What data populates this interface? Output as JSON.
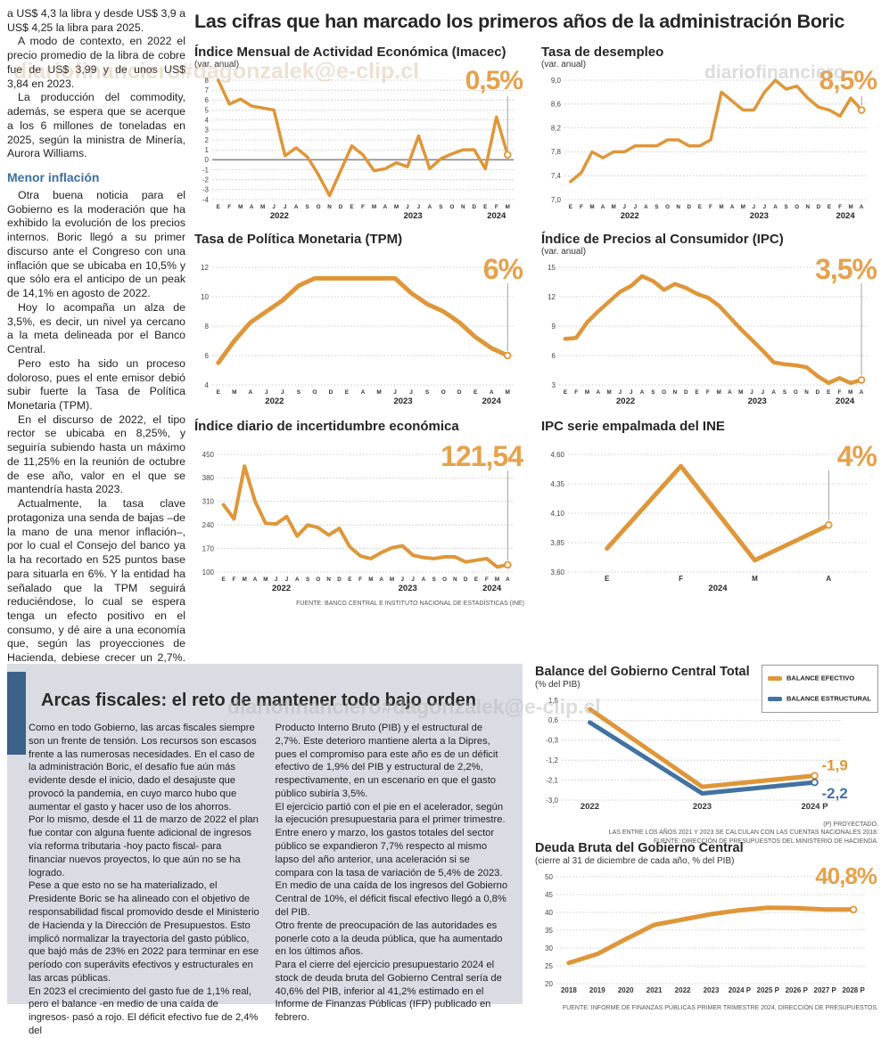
{
  "page_title": "Las cifras que han marcado los primeros años de la administración Boric",
  "colors": {
    "accent_orange": "#DF9639",
    "accent_blue": "#4272A2",
    "big_number": "#E6A14B"
  },
  "watermarks": [
    {
      "text": "diariofinanciero#dagonzalek@e-clip.cl"
    },
    {
      "text": "diariofinanciero"
    },
    {
      "text": "diariofinanciero#dagonzalek@e-clip.cl"
    }
  ],
  "article": {
    "paragraphs": [
      "a US$ 4,3 la libra y desde US$ 3,9 a US$ 4,25 la libra para 2025.",
      "A modo de contexto, en 2022 el precio promedio de la libra de cobre fue de US$ 3,99 y de unos US$ 3,84 en 2023.",
      "La producción del commodity, además, se espera que se acerque a los 6 millones de toneladas en 2025, según la ministra de Minería, Aurora Williams."
    ],
    "subhead": "Menor inflación",
    "paragraphs2": [
      "Otra buena noticia para el Gobierno es la moderación que ha exhibido la evolución de los precios internos. Boric llegó a su primer discurso ante el Congreso con una inflación que se ubicaba en 10,5% y que sólo era el anticipo de un peak de 14,1% en agosto de 2022.",
      "Hoy lo acompaña un alza de 3,5%, es decir, un nivel ya cercano a la meta delineada por el Banco Central.",
      "Pero esto ha sido un proceso doloroso, pues el ente emisor debió subir fuerte la Tasa de Política Monetaria (TPM).",
      "En el discurso de 2022, el tipo rector se ubicaba en 8,25%, y seguiría subiendo hasta un máximo de 11,25% en la reunión de octubre de ese año, valor en el que se mantendría hasta 2023.",
      "Actualmente, la tasa clave protagoniza una senda de bajas –de la mano de una menor inflación–, por lo cual el Consejo del banco ya la ha recortado en 525 puntos base para situarla en 6%. Y la entidad ha señalado que la TPM seguirá reduciéndose, lo cual se espera tenga un efecto positivo en el consumo, y dé aire a una economía que, según las proyecciones de Hacienda, debiese crecer un 2,7%."
    ]
  },
  "arcas": {
    "heading": "Arcas fiscales: el reto de mantener todo bajo orden",
    "col1": [
      "Como en todo Gobierno, las arcas fiscales siempre son un frente de tensión. Los recursos son escasos frente a las numerosas necesidades. En el caso de la administración Boric, el desafío fue aún más evidente desde el inicio, dado el desajuste que provocó la pandemia, en cuyo marco hubo que aumentar el gasto y hacer uso de los ahorros.",
      "Por lo mismo, desde el 11 de marzo de 2022 el plan fue contar con alguna fuente adicional de ingresos vía reforma tributaria -hoy pacto fiscal- para financiar nuevos proyectos, lo que aún no se ha logrado.",
      "Pese a que esto no se ha materializado, el Presidente Boric se ha alineado con el objetivo de responsabilidad fiscal promovido desde el Ministerio de Hacienda y la Dirección de Presupuestos. Esto implicó normalizar la trayectoria del gasto público, que bajó más de 23% en 2022 para terminar en ese período con superávits efectivos y estructurales en las arcas públicas.",
      "En 2023 el crecimiento del gasto fue de 1,1% real, pero el balance -en medio de una caída de ingresos- pasó a rojo. El déficit efectivo fue de 2,4% del"
    ],
    "col2": [
      "Producto Interno Bruto (PIB) y el estructural de 2,7%. Este deterioro mantiene alerta a la Dipres, pues el compromiso para este año es de un déficit efectivo de 1,9% del PIB y estructural de 2,2%, respectivamente, en un escenario en que el gasto público subiría 3,5%.",
      "El ejercicio partió con el pie en el acelerador, según la ejecución presupuestaria para el primer trimestre. Entre enero y marzo, los gastos totales del sector público se expandieron 7,7% respecto al mismo lapso del año anterior, una aceleración si se compara con la tasa de variación de 5,4% de 2023.",
      "En medio de una caída de los ingresos del Gobierno Central de 10%, el déficit fiscal efectivo llegó a 0,8% del PIB.",
      "Otro frente de preocupación de las autoridades es ponerle coto a la deuda pública, que ha aumentado en los últimos años.",
      "Para el cierre del ejercicio presupuestario 2024 el stock de deuda bruta del Gobierno Central sería de 40,6% del PIB, inferior al 41,2% estimado en el Informe de Finanzas Públicas (IFP) publicado en febrero."
    ]
  },
  "chart_data": [
    {
      "id": "imacec",
      "type": "line",
      "title": "Índice Mensual de Actividad Económica (Imacec)",
      "subtitle": "(var. anual)",
      "big_number": "0,5%",
      "connector": true,
      "ylim": [
        -4,
        8
      ],
      "zero_line": 0,
      "y_ticks": [
        {
          "v": 8,
          "label": "8"
        },
        {
          "v": 7,
          "label": "7"
        },
        {
          "v": 6,
          "label": "6"
        },
        {
          "v": 5,
          "label": "5"
        },
        {
          "v": 4,
          "label": "4"
        },
        {
          "v": 3,
          "label": "3"
        },
        {
          "v": 2,
          "label": "2"
        },
        {
          "v": 1,
          "label": "1"
        },
        {
          "v": 0,
          "label": "0"
        },
        {
          "v": -1,
          "label": "-1"
        },
        {
          "v": -2,
          "label": "-2"
        },
        {
          "v": -3,
          "label": "-3"
        },
        {
          "v": -4,
          "label": "-4"
        }
      ],
      "x_labels": [
        "E",
        "F",
        "M",
        "A",
        "M",
        "J",
        "J",
        "A",
        "S",
        "O",
        "N",
        "D",
        "E",
        "F",
        "M",
        "A",
        "M",
        "J",
        "J",
        "A",
        "S",
        "O",
        "N",
        "D",
        "E",
        "F",
        "M"
      ],
      "years": [
        {
          "label": "2022",
          "at": 5.5
        },
        {
          "label": "2023",
          "at": 17.5
        },
        {
          "label": "2024",
          "at": 25
        }
      ],
      "series": [
        {
          "name": "Imacec var. anual",
          "color": "#DF9639",
          "values": [
            8.0,
            5.6,
            6.1,
            5.4,
            5.2,
            5.0,
            0.4,
            1.2,
            0.3,
            -1.5,
            -3.6,
            -1.1,
            1.4,
            0.5,
            -1.1,
            -0.9,
            -0.3,
            -0.7,
            2.4,
            -0.9,
            0.1,
            0.6,
            1.0,
            1.0,
            -0.9,
            4.3,
            0.5
          ]
        }
      ]
    },
    {
      "id": "desempleo",
      "type": "line",
      "title": "Tasa de desempleo",
      "subtitle": "(var. anual)",
      "big_number": "8,5%",
      "connector": true,
      "ylim": [
        7.0,
        9.0
      ],
      "y_ticks": [
        {
          "v": 9.0,
          "label": "9,0"
        },
        {
          "v": 8.6,
          "label": "8,6"
        },
        {
          "v": 8.2,
          "label": "8,2"
        },
        {
          "v": 7.8,
          "label": "7,8"
        },
        {
          "v": 7.4,
          "label": "7,4"
        },
        {
          "v": 7.0,
          "label": "7,0"
        }
      ],
      "x_labels": [
        "E",
        "F",
        "M",
        "A",
        "M",
        "J",
        "J",
        "A",
        "S",
        "O",
        "N",
        "D",
        "E",
        "F",
        "M",
        "A",
        "M",
        "J",
        "J",
        "A",
        "S",
        "O",
        "N",
        "D",
        "E",
        "F",
        "M",
        "A"
      ],
      "years": [
        {
          "label": "2022",
          "at": 5.5
        },
        {
          "label": "2023",
          "at": 17.5
        },
        {
          "label": "2024",
          "at": 25.5
        }
      ],
      "series": [
        {
          "name": "Tasa de desempleo",
          "color": "#DF9639",
          "values": [
            7.3,
            7.45,
            7.8,
            7.7,
            7.8,
            7.8,
            7.9,
            7.9,
            7.9,
            8.0,
            8.0,
            7.9,
            7.9,
            8.0,
            8.8,
            8.65,
            8.5,
            8.5,
            8.8,
            9.0,
            8.85,
            8.9,
            8.7,
            8.55,
            8.5,
            8.4,
            8.7,
            8.5
          ]
        }
      ]
    },
    {
      "id": "tpm",
      "type": "line",
      "title": "Tasa de Política Monetaria (TPM)",
      "subtitle": null,
      "big_number": "6%",
      "connector": true,
      "ylim": [
        4,
        12
      ],
      "y_ticks": [
        {
          "v": 12,
          "label": "12"
        },
        {
          "v": 10,
          "label": "10"
        },
        {
          "v": 8,
          "label": "8"
        },
        {
          "v": 6,
          "label": "6"
        },
        {
          "v": 4,
          "label": "4"
        }
      ],
      "x_labels": [
        "E",
        "M",
        "A",
        "J",
        "J",
        "S",
        "O",
        "D",
        "E",
        "A",
        "M",
        "J",
        "J",
        "S",
        "O",
        "D",
        "E",
        "A",
        "M"
      ],
      "years": [
        {
          "label": "2022",
          "at": 3.5
        },
        {
          "label": "2023",
          "at": 11.5
        },
        {
          "label": "2024",
          "at": 17
        }
      ],
      "series": [
        {
          "name": "TPM",
          "color": "#DF9639",
          "values": [
            5.5,
            7.0,
            8.25,
            9.0,
            9.75,
            10.75,
            11.25,
            11.25,
            11.25,
            11.25,
            11.25,
            11.25,
            10.25,
            9.5,
            9.0,
            8.25,
            7.25,
            6.5,
            6.0
          ]
        }
      ]
    },
    {
      "id": "ipc",
      "type": "line",
      "title": "Índice de Precios al Consumidor (IPC)",
      "subtitle": "(var. anual)",
      "big_number": "3,5%",
      "connector": true,
      "ylim": [
        3,
        15
      ],
      "y_ticks": [
        {
          "v": 15,
          "label": "15"
        },
        {
          "v": 12,
          "label": "12"
        },
        {
          "v": 9,
          "label": "9"
        },
        {
          "v": 6,
          "label": "6"
        },
        {
          "v": 3,
          "label": "3"
        }
      ],
      "x_labels": [
        "E",
        "F",
        "M",
        "A",
        "M",
        "J",
        "J",
        "A",
        "S",
        "O",
        "N",
        "D",
        "E",
        "F",
        "M",
        "A",
        "M",
        "J",
        "J",
        "A",
        "S",
        "O",
        "N",
        "D",
        "E",
        "F",
        "M",
        "A"
      ],
      "years": [
        {
          "label": "2022",
          "at": 5.5
        },
        {
          "label": "2023",
          "at": 17.5
        },
        {
          "label": "2024",
          "at": 25.5
        }
      ],
      "series": [
        {
          "name": "IPC var. anual",
          "color": "#DF9639",
          "values": [
            7.7,
            7.8,
            9.4,
            10.5,
            11.5,
            12.5,
            13.1,
            14.1,
            13.6,
            12.7,
            13.3,
            12.9,
            12.3,
            11.9,
            11.1,
            9.9,
            8.7,
            7.6,
            6.5,
            5.3,
            5.1,
            5.0,
            4.8,
            3.9,
            3.2,
            3.7,
            3.2,
            3.5
          ]
        }
      ]
    },
    {
      "id": "incertidumbre",
      "type": "line",
      "title": "Índice diario de incertidumbre económica",
      "subtitle": null,
      "big_number": "121,54",
      "connector": true,
      "ylim": [
        100,
        450
      ],
      "y_ticks": [
        {
          "v": 450,
          "label": "450"
        },
        {
          "v": 380,
          "label": "380"
        },
        {
          "v": 310,
          "label": "310"
        },
        {
          "v": 240,
          "label": "240"
        },
        {
          "v": 170,
          "label": "170"
        },
        {
          "v": 100,
          "label": "100"
        }
      ],
      "x_labels": [
        "E",
        "F",
        "M",
        "A",
        "M",
        "J",
        "J",
        "A",
        "S",
        "O",
        "N",
        "D",
        "E",
        "F",
        "M",
        "A",
        "M",
        "J",
        "J",
        "A",
        "S",
        "O",
        "N",
        "D",
        "E",
        "F",
        "M",
        "A"
      ],
      "years": [
        {
          "label": "2022",
          "at": 5.5
        },
        {
          "label": "2023",
          "at": 17.5
        },
        {
          "label": "2024",
          "at": 25.5
        }
      ],
      "series": [
        {
          "name": "Incertidumbre económica",
          "color": "#DF9639",
          "values": [
            300,
            258,
            415,
            310,
            245,
            243,
            265,
            207,
            240,
            232,
            210,
            230,
            175,
            148,
            140,
            158,
            172,
            178,
            150,
            143,
            140,
            145,
            145,
            130,
            135,
            140,
            115,
            121.54
          ]
        }
      ],
      "source": "FUENTE: BANCO CENTRAL E INSTITUTO NACIONAL DE ESTADÍSTICAS (INE)"
    },
    {
      "id": "ipc_ine",
      "type": "line",
      "title": "IPC serie empalmada del INE",
      "subtitle": null,
      "big_number": "4%",
      "connector": true,
      "ylim": [
        3.6,
        4.6
      ],
      "y_ticks": [
        {
          "v": 4.6,
          "label": "4,60"
        },
        {
          "v": 4.35,
          "label": "4,35"
        },
        {
          "v": 4.1,
          "label": "4,10"
        },
        {
          "v": 3.85,
          "label": "3,85"
        },
        {
          "v": 3.6,
          "label": "3,60"
        }
      ],
      "x_labels": [
        "E",
        "F",
        "M",
        "A"
      ],
      "years": [
        {
          "label": "2024",
          "at": 1.5
        }
      ],
      "series": [
        {
          "name": "IPC serie empalmada",
          "color": "#DF9639",
          "values": [
            3.8,
            4.5,
            3.7,
            4.0
          ]
        }
      ]
    },
    {
      "id": "balance",
      "type": "line",
      "title": "Balance del Gobierno Central Total",
      "subtitle": "(% del PIB)",
      "legend": [
        {
          "label": "BALANCE EFECTIVO",
          "color": "#DF9639"
        },
        {
          "label": "BALANCE ESTRUCTURAL",
          "color": "#4272A2"
        }
      ],
      "ylim": [
        -3.0,
        1.5
      ],
      "y_ticks": [
        {
          "v": 1.5,
          "label": "1,5"
        },
        {
          "v": 0.6,
          "label": "0,6"
        },
        {
          "v": -0.3,
          "label": "-0,3"
        },
        {
          "v": -1.2,
          "label": "-1,2"
        },
        {
          "v": -2.1,
          "label": "-2,1"
        },
        {
          "v": -3.0,
          "label": "-3,0"
        }
      ],
      "x_labels": [
        "2022",
        "2023",
        "2024 P"
      ],
      "series": [
        {
          "name": "Balance efectivo",
          "color": "#DF9639",
          "values": [
            1.1,
            -2.4,
            -1.9
          ],
          "end_label": "-1,9",
          "end_dy": -6
        },
        {
          "name": "Balance estructural",
          "color": "#4272A2",
          "values": [
            0.5,
            -2.7,
            -2.2
          ],
          "end_label": "-2,2",
          "end_dy": 18
        }
      ],
      "footnotes": [
        "(P) PROYECTADO.",
        "LAS ENTRE LOS AÑOS 2021 Y 2023 SE CALCULAN  CON LAS CUENTAS NACIONALES 2018.",
        "FUENTE: DIRECCIÓN DE PRESUPUESTOS DEL MINISTERIO DE HACIENDA."
      ]
    },
    {
      "id": "deuda",
      "type": "line",
      "title": "Deuda Bruta del Gobierno Central",
      "subtitle": "(cierre al 31 de diciembre de cada año, % del PIB)",
      "big_number": "40,8%",
      "connector": false,
      "ylim": [
        20,
        50
      ],
      "y_ticks": [
        {
          "v": 50,
          "label": "50"
        },
        {
          "v": 45,
          "label": "45"
        },
        {
          "v": 40,
          "label": "40"
        },
        {
          "v": 35,
          "label": "35"
        },
        {
          "v": 30,
          "label": "30"
        },
        {
          "v": 25,
          "label": "25"
        },
        {
          "v": 20,
          "label": "20"
        }
      ],
      "x_labels": [
        "2018",
        "2019",
        "2020",
        "2021",
        "2022",
        "2023",
        "2024 P",
        "2025 P",
        "2026 P",
        "2027 P",
        "2028 P"
      ],
      "series": [
        {
          "name": "Deuda bruta % del PIB",
          "color": "#DF9639",
          "values": [
            25.8,
            28.3,
            32.5,
            36.5,
            38.0,
            39.5,
            40.6,
            41.3,
            41.2,
            40.8,
            40.8
          ]
        }
      ],
      "source": "FUENTE: INFORME DE FINANZAS PÚBLICAS PRIMER TRIMESTRE 2024, DIRECCIÓN DE PRESUPUESTOS."
    }
  ]
}
